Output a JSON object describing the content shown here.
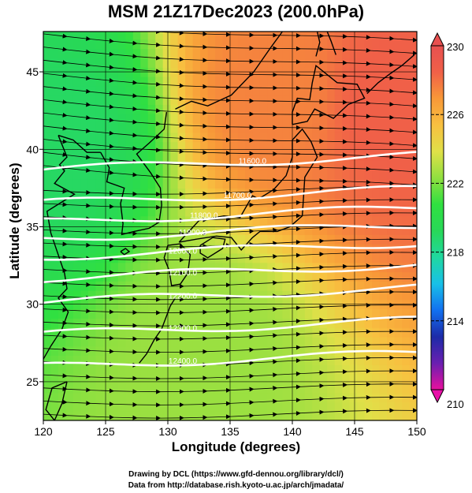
{
  "title": "MSM 21Z17Dec2023 (200.0hPa)",
  "x_axis": {
    "label": "Longitude (degrees)",
    "range": [
      120,
      150
    ],
    "ticks": [
      "120",
      "125",
      "130",
      "135",
      "140",
      "145",
      "150"
    ]
  },
  "y_axis": {
    "label": "Latitude  (degrees)",
    "range": [
      22.5,
      47.6
    ],
    "ticks": [
      "25",
      "30",
      "35",
      "40",
      "45"
    ]
  },
  "colorbar": {
    "min": 210,
    "max": 230,
    "tick_labels": [
      "230",
      "226",
      "222",
      "218",
      "214",
      "210"
    ],
    "colors": [
      "#e8109e",
      "#6a1fb0",
      "#1c2ba8",
      "#1270f0",
      "#18c0e8",
      "#20d8a0",
      "#28d858",
      "#30e040",
      "#90e040",
      "#e0e048",
      "#f8c040",
      "#f89838",
      "#f06048",
      "#e85050"
    ]
  },
  "contours": [
    {
      "label": "11600.0",
      "label_lon": 136.8,
      "label_lat": 39.2
    },
    {
      "label": "11700.0",
      "label_lon": 135.6,
      "label_lat": 37.0
    },
    {
      "label": "11800.0",
      "label_lon": 132.9,
      "label_lat": 35.7
    },
    {
      "label": "11900.0",
      "label_lon": 132.0,
      "label_lat": 34.6
    },
    {
      "label": "12000.0",
      "label_lon": 131.2,
      "label_lat": 33.4
    },
    {
      "label": "12100.0",
      "label_lon": 131.2,
      "label_lat": 32.0
    },
    {
      "label": "12200.0",
      "label_lon": 131.2,
      "label_lat": 30.5
    },
    {
      "label": "12300.0",
      "label_lon": 131.2,
      "label_lat": 28.4
    },
    {
      "label": "12400.0",
      "label_lon": 131.2,
      "label_lat": 26.3
    }
  ],
  "temperature_regions": [
    {
      "name": "cold-northwest",
      "lon": 121.5,
      "lat": 40.5,
      "value": 219
    },
    {
      "name": "warm-japan-sea",
      "lon": 139,
      "lat": 43.5,
      "value": 227.5
    },
    {
      "name": "warm-northeast",
      "lon": 147.5,
      "lat": 43,
      "value": 228.5
    },
    {
      "name": "mid-south",
      "lon": 133,
      "lat": 27,
      "value": 222.5
    }
  ],
  "credits": {
    "line1": "Drawing by DCL (https://www.gfd-dennou.org/library/dcl/)",
    "line2": "Data from http://database.rish.kyoto-u.ac.jp/arch/jmadata/"
  }
}
